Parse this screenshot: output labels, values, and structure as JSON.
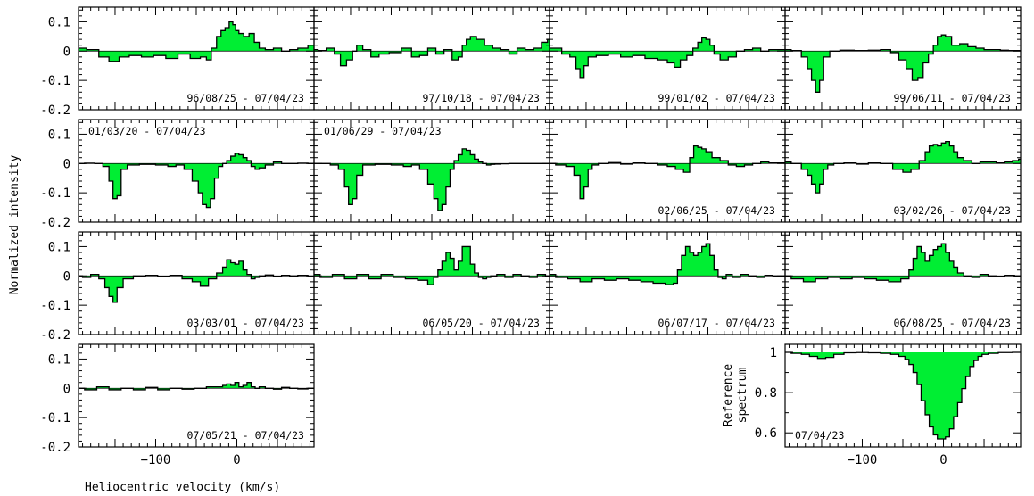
{
  "figure": {
    "ylabel": "Normalized intensity",
    "xlabel": "Heliocentric velocity (km/s)",
    "ref_ylabel_line1": "Reference",
    "ref_ylabel_line2": "spectrum"
  },
  "chart_data": {
    "type": "area",
    "fill_color": "#00ee33",
    "xlim": [
      -195,
      95
    ],
    "diff_ylim": [
      -0.2,
      0.15
    ],
    "ref_ylim": [
      0.53,
      1.04
    ],
    "x_ticks": [
      -100,
      0
    ],
    "diff_y_ticks": [
      0.1,
      0,
      -0.1,
      -0.2
    ],
    "ref_y_ticks": [
      1,
      0.8,
      0.6
    ],
    "panels": [
      {
        "label": "96/08/25 - 07/04/23",
        "label_pos": "bottom-right",
        "x": [
          -195,
          -175,
          -165,
          -150,
          -140,
          -125,
          -110,
          -95,
          -80,
          -65,
          -50,
          -40,
          -35,
          -28,
          -22,
          -17,
          -12,
          -7,
          -3,
          0,
          5,
          12,
          18,
          25,
          30,
          40,
          50,
          60,
          70,
          80,
          95
        ],
        "y": [
          0.01,
          0.005,
          -0.02,
          -0.035,
          -0.02,
          -0.015,
          -0.02,
          -0.015,
          -0.025,
          -0.01,
          -0.025,
          -0.02,
          -0.03,
          0.01,
          0.05,
          0.07,
          0.08,
          0.1,
          0.09,
          0.07,
          0.06,
          0.05,
          0.06,
          0.03,
          0.01,
          0.005,
          0.01,
          0,
          0.005,
          0.01,
          0.02
        ]
      },
      {
        "label": "97/10/18 - 07/04/23",
        "label_pos": "bottom-right",
        "x": [
          -195,
          -185,
          -175,
          -165,
          -160,
          -150,
          -145,
          -140,
          -130,
          -120,
          -110,
          -95,
          -80,
          -70,
          -60,
          -50,
          -40,
          -30,
          -20,
          -15,
          -10,
          -5,
          0,
          10,
          20,
          30,
          40,
          50,
          60,
          70,
          80,
          90,
          95
        ],
        "y": [
          0.005,
          0.002,
          0.01,
          -0.01,
          -0.05,
          -0.03,
          0,
          0.02,
          0.005,
          -0.02,
          -0.01,
          -0.005,
          0.01,
          -0.02,
          -0.015,
          0.01,
          -0.01,
          0.005,
          -0.03,
          -0.02,
          0.02,
          0.04,
          0.05,
          0.04,
          0.02,
          0.01,
          0.005,
          -0.01,
          0.01,
          0.005,
          0.01,
          0.03,
          0.04
        ]
      },
      {
        "label": "99/01/02 - 07/04/23",
        "label_pos": "bottom-right",
        "x": [
          -195,
          -185,
          -175,
          -165,
          -160,
          -155,
          -150,
          -145,
          -130,
          -115,
          -100,
          -85,
          -70,
          -55,
          -45,
          -38,
          -30,
          -22,
          -15,
          -10,
          -5,
          0,
          5,
          10,
          20,
          30,
          40,
          50,
          60,
          70,
          80,
          95
        ],
        "y": [
          0.01,
          0.01,
          -0.01,
          -0.02,
          -0.06,
          -0.09,
          -0.05,
          -0.02,
          -0.015,
          -0.01,
          -0.02,
          -0.015,
          -0.025,
          -0.03,
          -0.04,
          -0.055,
          -0.03,
          -0.015,
          0.01,
          0.03,
          0.045,
          0.04,
          0.02,
          -0.01,
          -0.03,
          -0.02,
          0,
          0.005,
          0.01,
          0,
          0.005,
          0.005
        ]
      },
      {
        "label": "99/06/11 - 07/04/23",
        "label_pos": "bottom-right",
        "x": [
          -195,
          -180,
          -170,
          -165,
          -160,
          -155,
          -150,
          -145,
          -135,
          -120,
          -100,
          -85,
          -70,
          -60,
          -50,
          -42,
          -35,
          -28,
          -22,
          -15,
          -10,
          -5,
          0,
          5,
          15,
          25,
          35,
          45,
          55,
          65,
          75,
          85,
          95
        ],
        "y": [
          0.005,
          0.002,
          -0.02,
          -0.06,
          -0.1,
          -0.14,
          -0.1,
          -0.02,
          0,
          0.003,
          0.002,
          0.003,
          0.005,
          -0.005,
          -0.03,
          -0.06,
          -0.1,
          -0.09,
          -0.04,
          -0.01,
          0.02,
          0.05,
          0.055,
          0.05,
          0.02,
          0.025,
          0.015,
          0.01,
          0.005,
          0.005,
          0.003,
          0.002,
          0.002
        ]
      },
      {
        "label": "01/03/20 - 07/04/23",
        "label_pos": "top-left",
        "x": [
          -195,
          -180,
          -170,
          -160,
          -155,
          -150,
          -145,
          -140,
          -130,
          -110,
          -90,
          -80,
          -70,
          -60,
          -50,
          -45,
          -40,
          -35,
          -30,
          -25,
          -20,
          -15,
          -10,
          -5,
          0,
          5,
          10,
          15,
          20,
          25,
          30,
          40,
          50,
          60,
          70,
          80,
          95
        ],
        "y": [
          0,
          0.001,
          0,
          -0.01,
          -0.06,
          -0.12,
          -0.11,
          -0.02,
          -0.005,
          -0.003,
          -0.005,
          -0.01,
          -0.005,
          -0.02,
          -0.06,
          -0.1,
          -0.14,
          -0.15,
          -0.12,
          -0.05,
          -0.01,
          0,
          0.01,
          0.025,
          0.035,
          0.03,
          0.02,
          0.01,
          -0.01,
          -0.02,
          -0.015,
          -0.005,
          0.005,
          0,
          0,
          0.001,
          0
        ]
      },
      {
        "label": "01/06/29 - 07/04/23",
        "label_pos": "top-left",
        "x": [
          -195,
          -180,
          -170,
          -160,
          -155,
          -150,
          -145,
          -140,
          -130,
          -110,
          -90,
          -80,
          -70,
          -60,
          -50,
          -45,
          -40,
          -35,
          -30,
          -25,
          -20,
          -15,
          -10,
          -5,
          0,
          5,
          10,
          15,
          20,
          25,
          30,
          40,
          50,
          60,
          70,
          80,
          95
        ],
        "y": [
          0,
          0,
          -0.005,
          -0.02,
          -0.08,
          -0.14,
          -0.12,
          -0.04,
          -0.005,
          -0.003,
          -0.005,
          -0.01,
          -0.005,
          -0.02,
          -0.07,
          -0.12,
          -0.16,
          -0.14,
          -0.08,
          -0.02,
          0.01,
          0.03,
          0.05,
          0.045,
          0.03,
          0.015,
          0.005,
          0,
          -0.005,
          -0.003,
          -0.002,
          -0.001,
          0,
          0,
          0,
          0,
          0
        ]
      },
      {
        "label": "02/06/25 - 07/04/23",
        "label_pos": "bottom-right",
        "x": [
          -195,
          -180,
          -170,
          -160,
          -155,
          -150,
          -145,
          -140,
          -130,
          -115,
          -100,
          -85,
          -70,
          -55,
          -45,
          -35,
          -25,
          -20,
          -15,
          -10,
          -5,
          0,
          10,
          20,
          30,
          40,
          50,
          60,
          70,
          80,
          95
        ],
        "y": [
          0,
          -0.005,
          -0.01,
          -0.04,
          -0.12,
          -0.08,
          -0.02,
          -0.005,
          0,
          0.003,
          -0.002,
          0.002,
          0,
          -0.005,
          -0.01,
          -0.02,
          -0.03,
          0.02,
          0.06,
          0.055,
          0.05,
          0.04,
          0.02,
          0.01,
          -0.005,
          -0.01,
          -0.005,
          0,
          0.005,
          0.002,
          0.002
        ]
      },
      {
        "label": "03/02/26 - 07/04/23",
        "label_pos": "bottom-right",
        "x": [
          -195,
          -180,
          -170,
          -165,
          -160,
          -155,
          -150,
          -145,
          -140,
          -130,
          -115,
          -100,
          -85,
          -70,
          -55,
          -45,
          -35,
          -25,
          -20,
          -15,
          -10,
          -5,
          0,
          5,
          10,
          15,
          20,
          30,
          40,
          50,
          60,
          70,
          80,
          90,
          95
        ],
        "y": [
          0.005,
          0,
          -0.02,
          -0.04,
          -0.07,
          -0.1,
          -0.07,
          -0.02,
          -0.005,
          0,
          0.002,
          -0.002,
          0.002,
          0,
          -0.02,
          -0.03,
          -0.02,
          0.01,
          0.04,
          0.06,
          0.065,
          0.06,
          0.07,
          0.075,
          0.06,
          0.04,
          0.02,
          0.01,
          0,
          0.005,
          0.005,
          0.002,
          0.005,
          0.01,
          0.015
        ]
      },
      {
        "label": "03/03/01 - 07/04/23",
        "label_pos": "bottom-right",
        "x": [
          -195,
          -185,
          -175,
          -165,
          -160,
          -155,
          -150,
          -145,
          -135,
          -120,
          -105,
          -90,
          -75,
          -60,
          -50,
          -40,
          -30,
          -20,
          -15,
          -10,
          -5,
          0,
          5,
          10,
          15,
          20,
          25,
          30,
          40,
          50,
          60,
          70,
          80,
          95
        ],
        "y": [
          0,
          -0.005,
          0.005,
          -0.01,
          -0.04,
          -0.07,
          -0.09,
          -0.04,
          -0.01,
          0,
          0.002,
          -0.002,
          0.002,
          -0.01,
          -0.02,
          -0.035,
          -0.01,
          0.01,
          0.03,
          0.055,
          0.045,
          0.04,
          0.05,
          0.02,
          0.005,
          -0.01,
          -0.005,
          0,
          0.003,
          -0.002,
          0.002,
          0,
          0.002,
          -0.002
        ]
      },
      {
        "label": "06/05/20 - 07/04/23",
        "label_pos": "bottom-right",
        "x": [
          -195,
          -180,
          -165,
          -150,
          -135,
          -120,
          -105,
          -90,
          -75,
          -60,
          -50,
          -45,
          -40,
          -35,
          -30,
          -25,
          -20,
          -15,
          -10,
          -5,
          0,
          5,
          10,
          15,
          20,
          25,
          35,
          45,
          55,
          65,
          75,
          85,
          95
        ],
        "y": [
          0.005,
          -0.005,
          0.005,
          -0.01,
          0.005,
          -0.01,
          0.005,
          -0.005,
          -0.01,
          -0.015,
          -0.03,
          -0.005,
          0.02,
          0.05,
          0.08,
          0.06,
          0.02,
          0.05,
          0.1,
          0.1,
          0.04,
          0.01,
          -0.005,
          -0.01,
          -0.005,
          0,
          0.005,
          -0.005,
          0.005,
          0,
          -0.005,
          0.005,
          0
        ]
      },
      {
        "label": "06/07/17 - 07/04/23",
        "label_pos": "bottom-right",
        "x": [
          -195,
          -180,
          -165,
          -150,
          -135,
          -120,
          -105,
          -90,
          -75,
          -60,
          -45,
          -40,
          -35,
          -30,
          -25,
          -20,
          -15,
          -10,
          -5,
          0,
          5,
          10,
          15,
          20,
          25,
          35,
          45,
          55,
          65,
          75,
          85,
          95
        ],
        "y": [
          0.005,
          -0.005,
          -0.01,
          -0.02,
          -0.01,
          -0.015,
          -0.01,
          -0.015,
          -0.02,
          -0.025,
          -0.03,
          -0.025,
          0.02,
          0.07,
          0.1,
          0.08,
          0.07,
          0.08,
          0.1,
          0.11,
          0.07,
          0.02,
          -0.005,
          -0.01,
          0.005,
          -0.005,
          0.005,
          0,
          -0.005,
          0.002,
          0,
          0
        ]
      },
      {
        "label": "06/08/25 - 07/04/23",
        "label_pos": "bottom-right",
        "x": [
          -195,
          -180,
          -165,
          -150,
          -135,
          -120,
          -105,
          -90,
          -75,
          -60,
          -45,
          -40,
          -35,
          -30,
          -25,
          -20,
          -15,
          -10,
          -5,
          0,
          5,
          10,
          15,
          20,
          30,
          40,
          50,
          60,
          70,
          80,
          95
        ],
        "y": [
          0,
          -0.01,
          -0.02,
          -0.01,
          -0.005,
          -0.01,
          -0.005,
          -0.01,
          -0.015,
          -0.02,
          -0.01,
          0.02,
          0.06,
          0.1,
          0.08,
          0.05,
          0.07,
          0.09,
          0.1,
          0.11,
          0.08,
          0.05,
          0.03,
          0.01,
          0,
          -0.005,
          0.005,
          0,
          -0.002,
          0.002,
          0
        ]
      },
      {
        "label": "07/05/21 - 07/04/23",
        "label_pos": "bottom-right",
        "x": [
          -195,
          -180,
          -165,
          -150,
          -135,
          -120,
          -105,
          -90,
          -75,
          -60,
          -45,
          -30,
          -20,
          -15,
          -10,
          -5,
          0,
          5,
          10,
          15,
          20,
          25,
          30,
          40,
          50,
          60,
          70,
          80,
          95
        ],
        "y": [
          0,
          -0.005,
          0.005,
          -0.005,
          0,
          -0.005,
          0.003,
          -0.005,
          0,
          -0.003,
          0,
          0.005,
          0.005,
          0.01,
          0.015,
          0.01,
          0.02,
          0.005,
          0.01,
          0.02,
          0.005,
          0,
          0.005,
          0,
          -0.003,
          0.003,
          0,
          -0.002,
          0
        ]
      }
    ],
    "reference": {
      "label": "07/04/23",
      "label_pos": "bottom-left",
      "x": [
        -195,
        -180,
        -170,
        -160,
        -150,
        -140,
        -130,
        -115,
        -100,
        -85,
        -70,
        -60,
        -50,
        -45,
        -40,
        -35,
        -30,
        -25,
        -20,
        -15,
        -10,
        -5,
        0,
        5,
        10,
        15,
        20,
        25,
        30,
        35,
        40,
        45,
        50,
        60,
        75,
        95
      ],
      "y": [
        1,
        0.995,
        0.99,
        0.98,
        0.97,
        0.975,
        0.99,
        0.998,
        0.999,
        0.998,
        0.995,
        0.99,
        0.98,
        0.965,
        0.94,
        0.9,
        0.84,
        0.76,
        0.69,
        0.63,
        0.59,
        0.57,
        0.57,
        0.58,
        0.62,
        0.68,
        0.75,
        0.82,
        0.88,
        0.93,
        0.96,
        0.98,
        0.99,
        0.995,
        0.999,
        1
      ]
    }
  }
}
